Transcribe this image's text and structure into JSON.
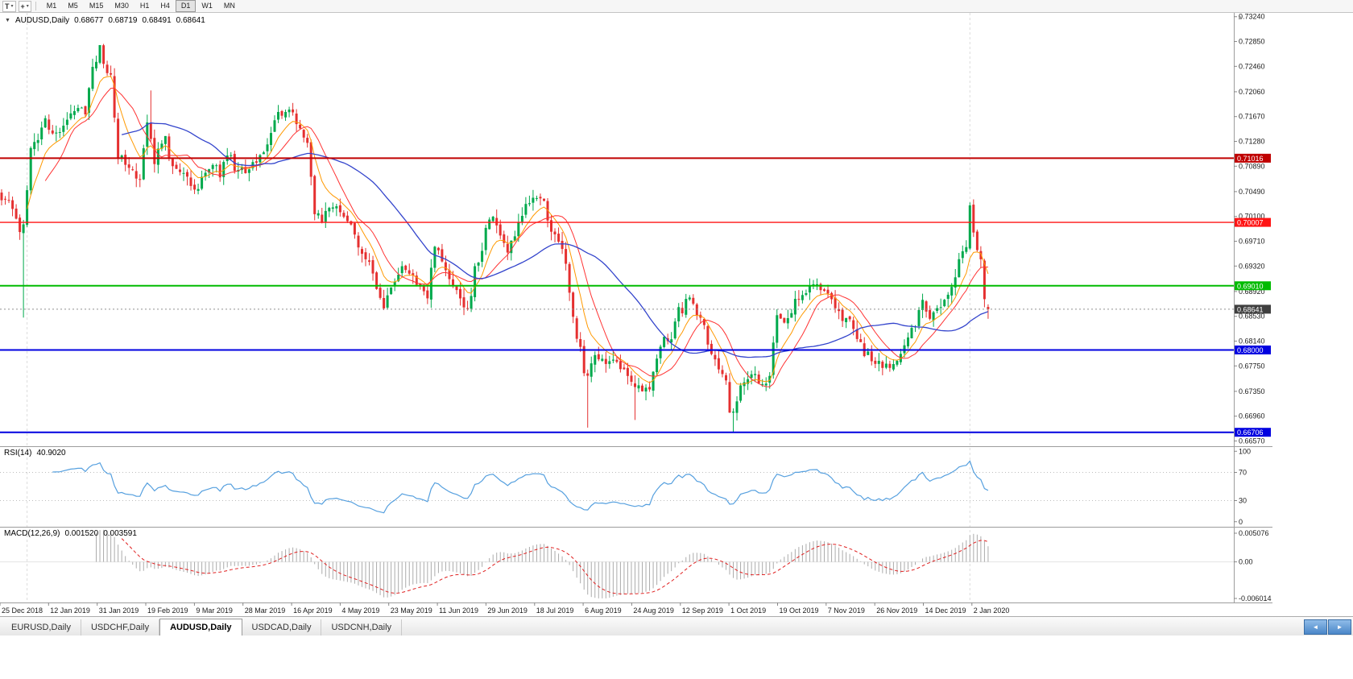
{
  "icons": {
    "t_tool": "T",
    "pointer_tool": "+",
    "dropdown_arrow": "▾",
    "expand_arrow": "▼",
    "up_triangle": "▲",
    "scroll_left": "◄",
    "scroll_right": "►"
  },
  "toolbar": {
    "timeframes": [
      {
        "label": "M1",
        "active": false
      },
      {
        "label": "M5",
        "active": false
      },
      {
        "label": "M15",
        "active": false
      },
      {
        "label": "M30",
        "active": false
      },
      {
        "label": "H1",
        "active": false
      },
      {
        "label": "H4",
        "active": false
      },
      {
        "label": "D1",
        "active": true
      },
      {
        "label": "W1",
        "active": false
      },
      {
        "label": "MN",
        "active": false
      }
    ]
  },
  "chart": {
    "symbol_period": "AUDUSD,Daily",
    "open": "0.68677",
    "high": "0.68719",
    "low": "0.68491",
    "close": "0.68641"
  },
  "chart_data": {
    "type": "candlestick",
    "symbol": "AUDUSD",
    "timeframe": "Daily",
    "num_bars": 272,
    "label_day_step": 13.35,
    "y_range": [
      0.665,
      0.733
    ],
    "y_axis_ticks": [
      "0.73240",
      "0.72850",
      "0.72460",
      "0.72060",
      "0.71670",
      "0.71280",
      "0.70890",
      "0.70490",
      "0.70100",
      "0.69710",
      "0.69320",
      "0.68920",
      "0.68530",
      "0.68140",
      "0.67750",
      "0.67350",
      "0.66960",
      "0.66570"
    ],
    "x_labels": [
      "25 Dec 2018",
      "12 Jan 2019",
      "31 Jan 2019",
      "19 Feb 2019",
      "9 Mar 2019",
      "28 Mar 2019",
      "16 Apr 2019",
      "4 May 2019",
      "23 May 2019",
      "11 Jun 2019",
      "29 Jun 2019",
      "18 Jul 2019",
      "6 Aug 2019",
      "24 Aug 2019",
      "12 Sep 2019",
      "1 Oct 2019",
      "19 Oct 2019",
      "7 Nov 2019",
      "26 Nov 2019",
      "14 Dec 2019",
      "2 Jan 2020"
    ],
    "year_separators": [
      7,
      266
    ],
    "h_lines": [
      {
        "price": 0.71016,
        "label": "0.71016",
        "color": "#C00000",
        "width": 2
      },
      {
        "price": 0.70007,
        "label": "0.70007",
        "color": "#FF1414",
        "width": 1.4
      },
      {
        "price": 0.6901,
        "label": "0.69010",
        "color": "#00BB00",
        "width": 2
      },
      {
        "price": 0.68,
        "label": "0.68000",
        "color": "#0000E0",
        "width": 2
      },
      {
        "price": 0.66706,
        "label": "0.66706",
        "color": "#0000E0",
        "width": 2
      }
    ],
    "current_price": {
      "value": 0.68641,
      "label": "0.68641",
      "badge_color": "#3F3F3F"
    },
    "last_bar": {
      "open": 0.68677,
      "high": 0.68719,
      "low": 0.68491,
      "close": 0.68641
    },
    "close_anchors": [
      [
        0,
        0.7043
      ],
      [
        3,
        0.7028
      ],
      [
        5,
        0.6988
      ],
      [
        6,
        0.7
      ],
      [
        8,
        0.7115
      ],
      [
        12,
        0.7158
      ],
      [
        15,
        0.7136
      ],
      [
        18,
        0.7168
      ],
      [
        20,
        0.7182
      ],
      [
        23,
        0.7178
      ],
      [
        25,
        0.7245
      ],
      [
        27,
        0.7272
      ],
      [
        28,
        0.7252
      ],
      [
        30,
        0.7228
      ],
      [
        32,
        0.7108
      ],
      [
        35,
        0.7092
      ],
      [
        38,
        0.7068
      ],
      [
        40,
        0.7155
      ],
      [
        42,
        0.7098
      ],
      [
        45,
        0.7132
      ],
      [
        47,
        0.7088
      ],
      [
        50,
        0.7078
      ],
      [
        53,
        0.7046
      ],
      [
        55,
        0.7072
      ],
      [
        58,
        0.7092
      ],
      [
        60,
        0.7078
      ],
      [
        62,
        0.7112
      ],
      [
        64,
        0.7088
      ],
      [
        67,
        0.7078
      ],
      [
        70,
        0.7095
      ],
      [
        73,
        0.7118
      ],
      [
        75,
        0.7168
      ],
      [
        78,
        0.7176
      ],
      [
        80,
        0.7174
      ],
      [
        82,
        0.7148
      ],
      [
        84,
        0.7128
      ],
      [
        86,
        0.7018
      ],
      [
        88,
        0.7008
      ],
      [
        90,
        0.7022
      ],
      [
        93,
        0.7018
      ],
      [
        95,
        0.6996
      ],
      [
        97,
        0.6986
      ],
      [
        99,
        0.6946
      ],
      [
        101,
        0.6932
      ],
      [
        103,
        0.6902
      ],
      [
        105,
        0.6872
      ],
      [
        107,
        0.6896
      ],
      [
        109,
        0.6924
      ],
      [
        111,
        0.693
      ],
      [
        113,
        0.6916
      ],
      [
        115,
        0.69
      ],
      [
        117,
        0.6886
      ],
      [
        119,
        0.6962
      ],
      [
        120,
        0.6958
      ],
      [
        122,
        0.6926
      ],
      [
        124,
        0.6906
      ],
      [
        126,
        0.6882
      ],
      [
        128,
        0.6858
      ],
      [
        130,
        0.6926
      ],
      [
        132,
        0.6958
      ],
      [
        133,
        0.6996
      ],
      [
        135,
        0.701
      ],
      [
        137,
        0.6982
      ],
      [
        139,
        0.6956
      ],
      [
        141,
        0.6976
      ],
      [
        143,
        0.7012
      ],
      [
        145,
        0.7036
      ],
      [
        147,
        0.704
      ],
      [
        149,
        0.7034
      ],
      [
        151,
        0.6986
      ],
      [
        153,
        0.6976
      ],
      [
        155,
        0.6942
      ],
      [
        157,
        0.6846
      ],
      [
        159,
        0.6802
      ],
      [
        160,
        0.6762
      ],
      [
        161,
        0.6756
      ],
      [
        163,
        0.6792
      ],
      [
        165,
        0.6786
      ],
      [
        167,
        0.6776
      ],
      [
        169,
        0.6782
      ],
      [
        171,
        0.6772
      ],
      [
        173,
        0.6756
      ],
      [
        174,
        0.6746
      ],
      [
        176,
        0.6736
      ],
      [
        178,
        0.6732
      ],
      [
        180,
        0.6792
      ],
      [
        182,
        0.6816
      ],
      [
        184,
        0.6812
      ],
      [
        186,
        0.6866
      ],
      [
        187,
        0.6864
      ],
      [
        189,
        0.6882
      ],
      [
        191,
        0.6862
      ],
      [
        193,
        0.6832
      ],
      [
        195,
        0.6792
      ],
      [
        197,
        0.6766
      ],
      [
        199,
        0.6752
      ],
      [
        200,
        0.6702
      ],
      [
        201,
        0.6706
      ],
      [
        203,
        0.6742
      ],
      [
        205,
        0.6756
      ],
      [
        207,
        0.6766
      ],
      [
        209,
        0.6742
      ],
      [
        211,
        0.6756
      ],
      [
        213,
        0.6856
      ],
      [
        215,
        0.6842
      ],
      [
        217,
        0.6862
      ],
      [
        219,
        0.6886
      ],
      [
        221,
        0.6896
      ],
      [
        223,
        0.6906
      ],
      [
        225,
        0.6892
      ],
      [
        227,
        0.6896
      ],
      [
        229,
        0.6862
      ],
      [
        231,
        0.6846
      ],
      [
        233,
        0.6842
      ],
      [
        235,
        0.6822
      ],
      [
        237,
        0.6796
      ],
      [
        239,
        0.6786
      ],
      [
        240,
        0.6782
      ],
      [
        242,
        0.6776
      ],
      [
        244,
        0.6772
      ],
      [
        246,
        0.6782
      ],
      [
        248,
        0.6802
      ],
      [
        250,
        0.6832
      ],
      [
        252,
        0.6856
      ],
      [
        253,
        0.6872
      ],
      [
        255,
        0.6852
      ],
      [
        257,
        0.6862
      ],
      [
        259,
        0.6882
      ],
      [
        261,
        0.6902
      ],
      [
        263,
        0.6936
      ],
      [
        265,
        0.6962
      ],
      [
        266,
        0.7021
      ],
      [
        267,
        0.6986
      ],
      [
        268,
        0.6952
      ],
      [
        269,
        0.6936
      ],
      [
        270,
        0.688
      ],
      [
        271,
        0.68641
      ]
    ],
    "wick_events": [
      {
        "day": 6,
        "low": 0.6851
      },
      {
        "day": 41,
        "high": 0.7208
      },
      {
        "day": 105,
        "low": 0.6865
      },
      {
        "day": 161,
        "low": 0.6678
      },
      {
        "day": 174,
        "low": 0.669
      },
      {
        "day": 201,
        "low": 0.6671
      },
      {
        "day": 266,
        "high": 0.7032
      }
    ],
    "moving_averages": [
      {
        "type": "ema",
        "period": 8,
        "color": "#FF9900"
      },
      {
        "type": "sma",
        "period": 13,
        "color": "#FF3333"
      },
      {
        "type": "sma",
        "period": 34,
        "color": "#3344CC"
      }
    ],
    "indicators": {
      "rsi": {
        "label": "RSI(14)",
        "value": "40.9020",
        "period": 14,
        "levels": [
          "100",
          "70",
          "30",
          "0"
        ],
        "line_color": "#56A0DF"
      },
      "macd": {
        "label": "MACD(12,26,9)",
        "value_macd": "0.001520",
        "value_signal": "0.003591",
        "fast": 12,
        "slow": 26,
        "signal": 9,
        "scale_max": 0.005076,
        "scale_min": -0.006014,
        "axis_labels": [
          "0.005076",
          "0.00",
          "-0.006014"
        ],
        "hist_color": "#ABABAB",
        "signal_color": "#E02020"
      }
    }
  },
  "colors": {
    "up": "#00A94C",
    "down": "#E53030"
  },
  "tabs": [
    {
      "label": "EURUSD,Daily",
      "active": false
    },
    {
      "label": "USDCHF,Daily",
      "active": false
    },
    {
      "label": "AUDUSD,Daily",
      "active": true
    },
    {
      "label": "USDCAD,Daily",
      "active": false
    },
    {
      "label": "USDCNH,Daily",
      "active": false
    }
  ]
}
